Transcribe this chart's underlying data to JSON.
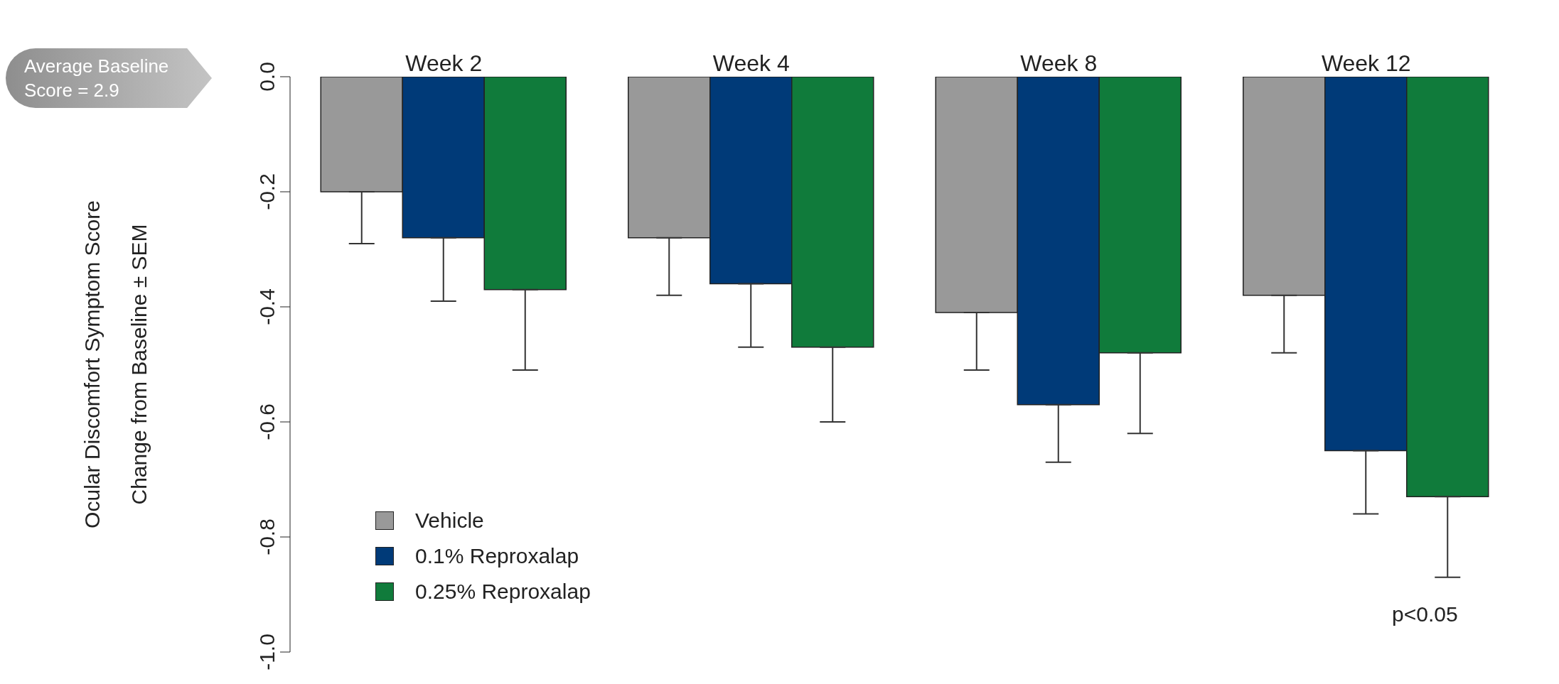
{
  "chart_data": {
    "type": "bar",
    "categories": [
      "Week 2",
      "Week 4",
      "Week 8",
      "Week 12"
    ],
    "ylabel": "Ocular Discomfort Symptom Score\nChange from Baseline ± SEM",
    "series": [
      {
        "name": "Vehicle",
        "color": "#999999",
        "values": [
          -0.2,
          -0.28,
          -0.41,
          -0.38
        ],
        "errors": [
          [
            -0.29,
            -0.2
          ],
          [
            -0.38,
            -0.28
          ],
          [
            -0.51,
            -0.41
          ],
          [
            -0.48,
            -0.38
          ]
        ]
      },
      {
        "name": "0.1% Reproxalap",
        "color": "#003a78",
        "values": [
          -0.28,
          -0.36,
          -0.57,
          -0.65
        ],
        "errors": [
          [
            -0.39,
            -0.28
          ],
          [
            -0.47,
            -0.36
          ],
          [
            -0.67,
            -0.57
          ],
          [
            -0.76,
            -0.65
          ]
        ]
      },
      {
        "name": "0.25% Reproxalap",
        "color": "#107b3b",
        "values": [
          -0.37,
          -0.47,
          -0.48,
          -0.73
        ],
        "errors": [
          [
            -0.51,
            -0.37
          ],
          [
            -0.6,
            -0.47
          ],
          [
            -0.62,
            -0.48
          ],
          [
            -0.87,
            -0.73
          ]
        ]
      }
    ],
    "ylim": [
      -1.0,
      0
    ],
    "yticks": [
      {
        "value": 0,
        "label": "0.0"
      },
      -0.2,
      -0.4,
      -0.6,
      -0.8,
      {
        "value": -1.0,
        "label": "-1.0"
      }
    ],
    "grid": false,
    "legend": "bottom left",
    "annotations": [
      "Average Baseline Score = 2.9",
      "p<0.05"
    ]
  }
}
